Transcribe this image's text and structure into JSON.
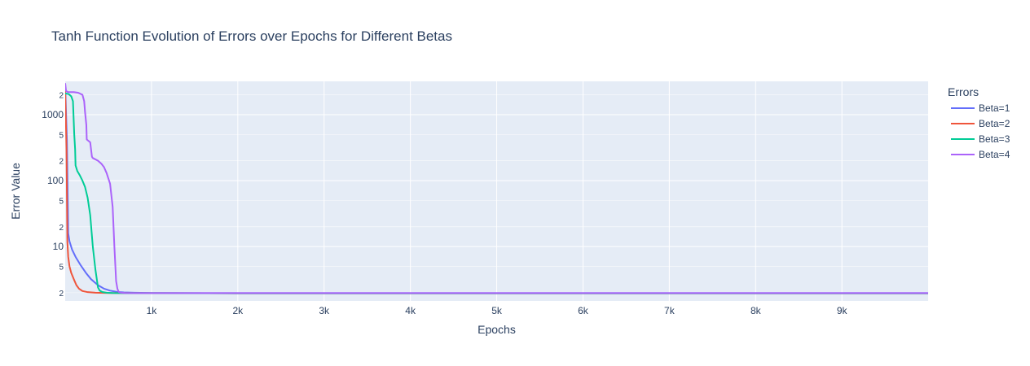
{
  "chart_data": {
    "type": "line",
    "title": "Tanh Function Evolution of Errors over Epochs for Different Betas",
    "xlabel": "Epochs",
    "ylabel": "Error Value",
    "xlim": [
      0,
      9999
    ],
    "ylim": [
      1.5,
      3200
    ],
    "y_scale": "log",
    "grid": true,
    "x_ticks": [
      {
        "value": 1000,
        "label": "1k"
      },
      {
        "value": 2000,
        "label": "2k"
      },
      {
        "value": 3000,
        "label": "3k"
      },
      {
        "value": 4000,
        "label": "4k"
      },
      {
        "value": 5000,
        "label": "5k"
      },
      {
        "value": 6000,
        "label": "6k"
      },
      {
        "value": 7000,
        "label": "7k"
      },
      {
        "value": 8000,
        "label": "8k"
      },
      {
        "value": 9000,
        "label": "9k"
      }
    ],
    "y_major_ticks": [
      {
        "value": 10,
        "label": "10"
      },
      {
        "value": 100,
        "label": "100"
      },
      {
        "value": 1000,
        "label": "1000"
      }
    ],
    "y_minor_ticks": [
      {
        "value": 2,
        "label": "2"
      },
      {
        "value": 5,
        "label": "5"
      },
      {
        "value": 20,
        "label": "2"
      },
      {
        "value": 50,
        "label": "5"
      },
      {
        "value": 200,
        "label": "2"
      },
      {
        "value": 500,
        "label": "5"
      },
      {
        "value": 2000,
        "label": "2"
      }
    ],
    "legend": {
      "title": "Errors",
      "position": "right"
    },
    "series": [
      {
        "name": "Beta=1",
        "color": "#636efa",
        "x": [
          0,
          20,
          35,
          50,
          80,
          120,
          180,
          240,
          300,
          380,
          450,
          520,
          600,
          680,
          800,
          1000,
          2000,
          5000,
          9999
        ],
        "y": [
          2800,
          400,
          16,
          12,
          9,
          7,
          5.2,
          4,
          3.2,
          2.6,
          2.3,
          2.15,
          2.06,
          2.02,
          2.0,
          1.98,
          1.97,
          1.97,
          1.97
        ]
      },
      {
        "name": "Beta=2",
        "color": "#ef553b",
        "x": [
          0,
          15,
          25,
          35,
          50,
          70,
          100,
          130,
          160,
          200,
          260,
          350,
          500,
          800,
          2000,
          5000,
          9999
        ],
        "y": [
          2400,
          300,
          12,
          7,
          5,
          4,
          3.2,
          2.6,
          2.3,
          2.12,
          2.04,
          2.0,
          1.98,
          1.97,
          1.96,
          1.96,
          1.96
        ]
      },
      {
        "name": "Beta=3",
        "color": "#00cc96",
        "x": [
          0,
          40,
          70,
          90,
          105,
          115,
          120,
          140,
          170,
          200,
          230,
          260,
          290,
          320,
          350,
          380,
          400,
          430,
          480,
          550,
          700,
          1000,
          2000,
          5000,
          9999
        ],
        "y": [
          2100,
          2050,
          1900,
          1600,
          500,
          300,
          170,
          140,
          120,
          100,
          80,
          55,
          30,
          10,
          4.5,
          2.4,
          2.15,
          2.05,
          2.0,
          1.98,
          1.97,
          1.97,
          1.96,
          1.96,
          1.96
        ]
      },
      {
        "name": "Beta=4",
        "color": "#ab63fa",
        "x": [
          0,
          10,
          30,
          100,
          150,
          200,
          220,
          230,
          245,
          250,
          270,
          290,
          310,
          320,
          350,
          380,
          420,
          450,
          480,
          520,
          550,
          570,
          590,
          605,
          620,
          650,
          700,
          800,
          1000,
          2000,
          5000,
          9999
        ],
        "y": [
          3000,
          2300,
          2200,
          2200,
          2150,
          2000,
          1600,
          1100,
          700,
          420,
          400,
          380,
          230,
          220,
          210,
          200,
          180,
          160,
          130,
          90,
          40,
          10,
          3,
          2.3,
          2.05,
          2.0,
          1.98,
          1.97,
          1.97,
          1.97,
          1.97,
          1.97
        ]
      }
    ]
  }
}
